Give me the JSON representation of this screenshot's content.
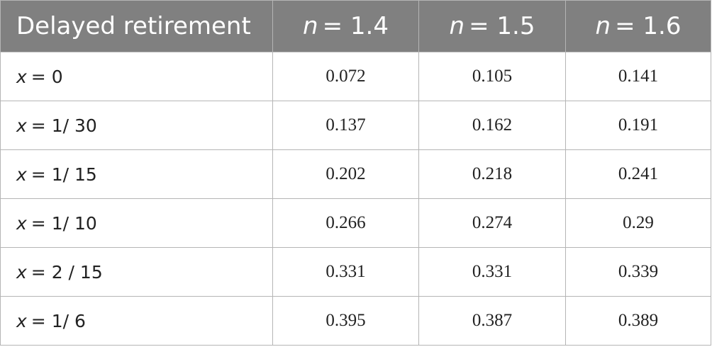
{
  "table": {
    "header": {
      "first": "Delayed retirement",
      "columns": [
        {
          "variable": "n",
          "value": "= 1.4"
        },
        {
          "variable": "n",
          "value": "= 1.5"
        },
        {
          "variable": "n",
          "value": "= 1.6"
        }
      ]
    },
    "rows": [
      {
        "label": {
          "variable": "x",
          "value": "= 0"
        },
        "values": [
          0.072,
          0.105,
          0.141
        ]
      },
      {
        "label": {
          "variable": "x",
          "value": "= 1/ 30"
        },
        "values": [
          0.137,
          0.162,
          0.191
        ]
      },
      {
        "label": {
          "variable": "x",
          "value": "= 1/ 15"
        },
        "values": [
          0.202,
          0.218,
          0.241
        ]
      },
      {
        "label": {
          "variable": "x",
          "value": "= 1/ 10"
        },
        "values": [
          0.266,
          0.274,
          0.29
        ]
      },
      {
        "label": {
          "variable": "x",
          "value": "= 2 / 15"
        },
        "values": [
          0.331,
          0.331,
          0.339
        ]
      },
      {
        "label": {
          "variable": "x",
          "value": "= 1/ 6"
        },
        "values": [
          0.395,
          0.387,
          0.389
        ]
      }
    ]
  }
}
